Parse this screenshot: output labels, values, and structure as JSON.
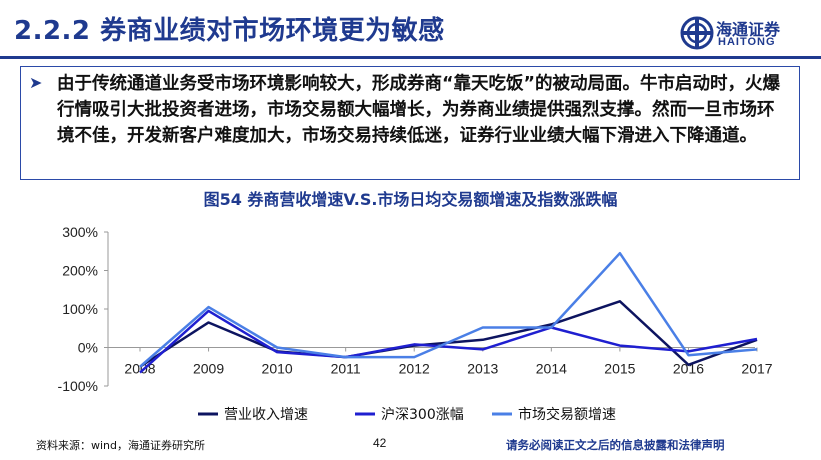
{
  "header": {
    "title": "2.2.2 券商业绩对市场环境更为敏感",
    "logo_cn": "海通证券",
    "logo_en": "HAITONG"
  },
  "summary": {
    "text": "由于传统通道业务受市场环境影响较大，形成券商“靠天吃饭”的被动局面。牛市启动时，火爆行情吸引大批投资者进场，市场交易额大幅增长，为券商业绩提供强烈支撑。然而一旦市场环境不佳，开发新客户难度加大，市场交易持续低迷，证券行业业绩大幅下滑进入下降通道。"
  },
  "figure": {
    "title": "图54   券商营收增速V.S.市场日均交易额增速及指数涨跌幅"
  },
  "chart_data": {
    "type": "line",
    "categories": [
      "2008",
      "2009",
      "2010",
      "2011",
      "2012",
      "2013",
      "2014",
      "2015",
      "2016",
      "2017"
    ],
    "y_ticks": [
      "300%",
      "200%",
      "100%",
      "0%",
      "-100%"
    ],
    "ylim": [
      -100,
      300
    ],
    "y_unit": "%",
    "grid": false,
    "legend_position": "bottom",
    "series": [
      {
        "name": "营业收入增速",
        "color": "#0d1460",
        "values": [
          -50,
          65,
          -10,
          -25,
          5,
          20,
          60,
          120,
          -45,
          20
        ]
      },
      {
        "name": "沪深300涨幅",
        "color": "#1f1fd0",
        "values": [
          -65,
          95,
          -12,
          -25,
          8,
          -5,
          52,
          5,
          -10,
          22
        ]
      },
      {
        "name": "市场交易额增速",
        "color": "#4a7fe6",
        "values": [
          -50,
          105,
          0,
          -25,
          -25,
          52,
          52,
          245,
          -20,
          -5
        ]
      }
    ]
  },
  "footer": {
    "source": "资料来源：wind，海通证券研究所",
    "page": "42",
    "disclaimer": "请务必阅读正文之后的信息披露和法律声明"
  }
}
